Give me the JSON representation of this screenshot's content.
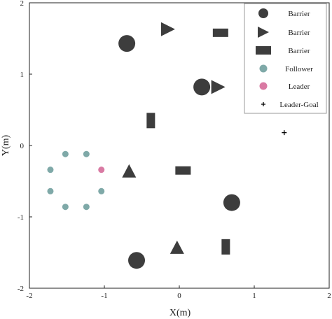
{
  "chart_data": {
    "type": "scatter",
    "xlabel": "X(m)",
    "ylabel": "Y(m)",
    "xlim": [
      -2,
      2
    ],
    "ylim": [
      -2,
      2
    ],
    "x_ticks": [
      -2,
      -1,
      0,
      1,
      2
    ],
    "y_ticks": [
      -2,
      -1,
      0,
      1,
      2
    ],
    "grid": false,
    "legend_position": "top-right",
    "colors": {
      "barrier": "#3d3d3d",
      "follower": "#7fa9a8",
      "leader": "#d97aa3",
      "goal": "#000000"
    },
    "legend": [
      {
        "label": "Barrier",
        "marker": "circle"
      },
      {
        "label": "Barrier",
        "marker": "triangle-right"
      },
      {
        "label": "Barrier",
        "marker": "rectangle"
      },
      {
        "label": "Follower",
        "marker": "small-circle-follower"
      },
      {
        "label": "Leader",
        "marker": "small-circle-leader"
      },
      {
        "label": "Leader-Goal",
        "marker": "plus"
      }
    ],
    "series": [
      {
        "kind": "barrier-circle",
        "points": [
          {
            "x": -0.7,
            "y": 1.43
          },
          {
            "x": 0.3,
            "y": 0.82
          },
          {
            "x": 0.7,
            "y": -0.8
          },
          {
            "x": -0.57,
            "y": -1.61
          }
        ]
      },
      {
        "kind": "barrier-triangle-right",
        "points": [
          {
            "x": -0.15,
            "y": 1.63
          },
          {
            "x": 0.52,
            "y": 0.82
          }
        ]
      },
      {
        "kind": "barrier-triangle-up",
        "points": [
          {
            "x": -0.67,
            "y": -0.36
          },
          {
            "x": -0.03,
            "y": -1.43
          }
        ]
      },
      {
        "kind": "barrier-rect-horizontal",
        "points": [
          {
            "x": 0.55,
            "y": 1.58
          },
          {
            "x": 0.05,
            "y": -0.35
          }
        ]
      },
      {
        "kind": "barrier-rect-vertical",
        "points": [
          {
            "x": -0.38,
            "y": 0.35
          },
          {
            "x": 0.62,
            "y": -1.42
          }
        ]
      },
      {
        "kind": "follower",
        "points": [
          {
            "x": -1.52,
            "y": -0.12
          },
          {
            "x": -1.24,
            "y": -0.12
          },
          {
            "x": -1.72,
            "y": -0.34
          },
          {
            "x": -1.72,
            "y": -0.64
          },
          {
            "x": -1.52,
            "y": -0.86
          },
          {
            "x": -1.24,
            "y": -0.86
          },
          {
            "x": -1.04,
            "y": -0.64
          }
        ]
      },
      {
        "kind": "leader",
        "points": [
          {
            "x": -1.04,
            "y": -0.34
          }
        ]
      },
      {
        "kind": "leader-goal",
        "points": [
          {
            "x": 1.4,
            "y": 0.18
          }
        ]
      }
    ]
  }
}
